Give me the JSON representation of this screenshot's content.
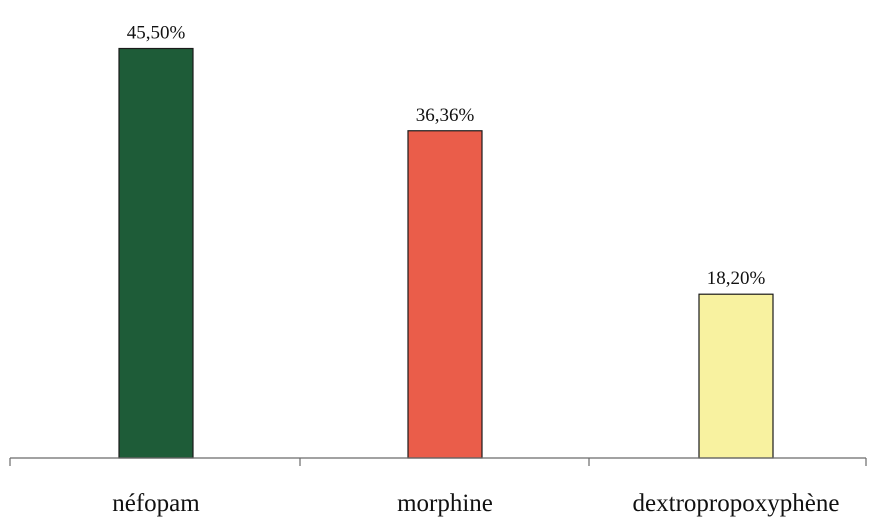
{
  "chart_data": {
    "type": "bar",
    "categories": [
      "néfopam",
      "morphine",
      "dextropropoxyphène"
    ],
    "values": [
      45.5,
      36.36,
      18.2
    ],
    "value_labels": [
      "45,50%",
      "36,36%",
      "18,20%"
    ],
    "colors": [
      "#1e5c38",
      "#ea5d4a",
      "#f8f2a0"
    ],
    "title": "",
    "xlabel": "",
    "ylabel": "",
    "ylim": [
      0,
      50
    ],
    "grid": false,
    "legend": "none"
  }
}
